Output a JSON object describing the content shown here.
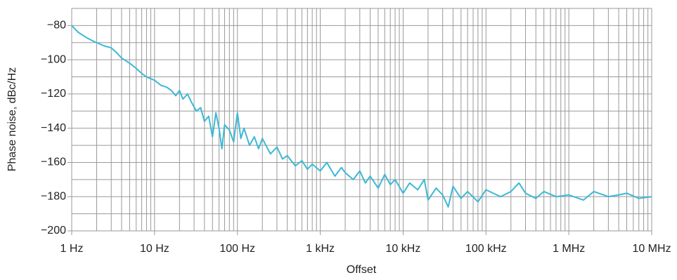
{
  "chart_data": {
    "type": "line",
    "xlabel": "Offset",
    "ylabel": "Phase noise, dBc/Hz",
    "xscale": "log",
    "grid": true,
    "xlim": [
      1,
      10000000
    ],
    "xticks": [
      {
        "value": 1,
        "label": "1 Hz"
      },
      {
        "value": 10,
        "label": "10 Hz"
      },
      {
        "value": 100,
        "label": "100 Hz"
      },
      {
        "value": 1000,
        "label": "1 kHz"
      },
      {
        "value": 10000,
        "label": "10 kHz"
      },
      {
        "value": 100000,
        "label": "100 kHz"
      },
      {
        "value": 1000000,
        "label": "1 MHz"
      },
      {
        "value": 10000000,
        "label": "10 MHz"
      }
    ],
    "ylim": [
      -200,
      -70
    ],
    "yticks": [
      {
        "value": -200,
        "label": "−200"
      },
      {
        "value": -180,
        "label": "−180"
      },
      {
        "value": -160,
        "label": "−160"
      },
      {
        "value": -140,
        "label": "−140"
      },
      {
        "value": -120,
        "label": "−120"
      },
      {
        "value": -100,
        "label": "−100"
      },
      {
        "value": -80,
        "label": "−80"
      }
    ],
    "x": [
      1,
      1.2,
      1.5,
      1.8,
      2,
      2.5,
      3,
      3.5,
      4,
      5,
      6,
      7,
      8,
      10,
      12,
      14,
      16,
      18,
      20,
      22,
      25,
      28,
      32,
      36,
      40,
      45,
      50,
      55,
      60,
      65,
      70,
      80,
      90,
      100,
      110,
      120,
      140,
      160,
      180,
      200,
      250,
      300,
      350,
      400,
      500,
      600,
      700,
      800,
      1000,
      1200,
      1500,
      1800,
      2000,
      2500,
      3000,
      3500,
      4000,
      5000,
      6000,
      7000,
      8000,
      10000,
      12000,
      15000,
      18000,
      20000,
      25000,
      30000,
      35000,
      40000,
      50000,
      60000,
      80000,
      100000,
      150000,
      200000,
      250000,
      300000,
      400000,
      500000,
      700000,
      1000000,
      1500000,
      2000000,
      3000000,
      4000000,
      5000000,
      7000000,
      10000000
    ],
    "series": [
      {
        "color": "#3cb9d5",
        "values": [
          -80,
          -84,
          -87,
          -89,
          -90,
          -92,
          -93,
          -96,
          -99,
          -102,
          -105,
          -108,
          -110,
          -112,
          -115,
          -116,
          -118,
          -121,
          -118,
          -123,
          -120,
          -125,
          -130,
          -128,
          -136,
          -133,
          -145,
          -131,
          -140,
          -152,
          -138,
          -141,
          -148,
          -131,
          -146,
          -140,
          -150,
          -145,
          -152,
          -146,
          -155,
          -151,
          -158,
          -156,
          -162,
          -159,
          -164,
          -161,
          -165,
          -160,
          -168,
          -163,
          -166,
          -170,
          -165,
          -172,
          -168,
          -175,
          -167,
          -173,
          -170,
          -178,
          -172,
          -176,
          -170,
          -182,
          -175,
          -179,
          -186,
          -174,
          -181,
          -177,
          -183,
          -176,
          -180,
          -177,
          -172,
          -178,
          -181,
          -177,
          -180,
          -179,
          -182,
          -177,
          -180,
          -179,
          -178,
          -181,
          -180
        ]
      }
    ]
  }
}
